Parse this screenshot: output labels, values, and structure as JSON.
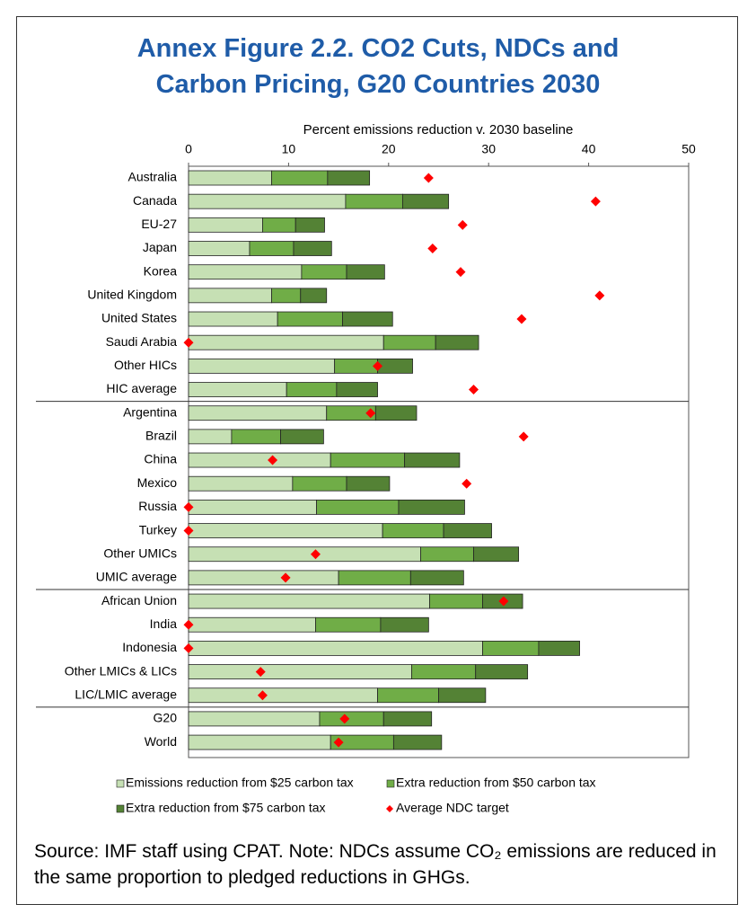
{
  "chart_data": {
    "type": "stacked_bar_horizontal",
    "title": "Annex Figure 2.2. CO2 Cuts, NDCs and Carbon Pricing, G20 Countries 2030",
    "x_label": "Percent emissions reduction v. 2030 baseline",
    "xlim": [
      0,
      50
    ],
    "xticks": [
      0,
      10,
      20,
      30,
      40,
      50
    ],
    "categories": [
      "Australia",
      "Canada",
      "EU-27",
      "Japan",
      "Korea",
      "United Kingdom",
      "United States",
      "Saudi Arabia",
      "Other HICs",
      "HIC average",
      "Argentina",
      "Brazil",
      "China",
      "Mexico",
      "Russia",
      "Turkey",
      "Other UMICs",
      "UMIC average",
      "African Union",
      "India",
      "Indonesia",
      "Other LMICs & LICs",
      "LIC/LMIC average",
      "G20",
      "World"
    ],
    "series": [
      {
        "name": "Emissions reduction from $25 carbon tax",
        "color": "#c6e0b4",
        "values": [
          8.3,
          15.7,
          7.4,
          6.1,
          11.3,
          8.3,
          8.9,
          19.5,
          14.6,
          9.8,
          13.8,
          4.3,
          14.2,
          10.4,
          12.8,
          19.4,
          23.2,
          15.0,
          24.1,
          12.7,
          29.4,
          22.3,
          18.9,
          13.1,
          14.2
        ]
      },
      {
        "name": "Extra reduction from $50 carbon tax",
        "color": "#70ad47",
        "values": [
          5.6,
          5.7,
          3.3,
          4.4,
          4.5,
          2.9,
          6.5,
          5.2,
          4.3,
          5.0,
          4.9,
          4.9,
          7.4,
          5.4,
          8.2,
          6.1,
          5.3,
          7.2,
          5.3,
          6.5,
          5.6,
          6.4,
          6.1,
          6.4,
          6.3
        ]
      },
      {
        "name": "Extra reduction from $75 carbon tax",
        "color": "#548235",
        "values": [
          4.2,
          4.6,
          2.9,
          3.8,
          3.8,
          2.6,
          5.0,
          4.3,
          3.5,
          4.1,
          4.1,
          4.3,
          5.5,
          4.3,
          6.6,
          4.8,
          4.5,
          5.3,
          4.0,
          4.8,
          4.1,
          5.2,
          4.7,
          4.8,
          4.8
        ]
      }
    ],
    "markers": {
      "name": "Average NDC target",
      "color": "#ff0000",
      "values": [
        24.0,
        40.7,
        27.4,
        24.4,
        27.2,
        41.1,
        33.3,
        0,
        18.9,
        28.5,
        18.2,
        33.5,
        8.4,
        27.8,
        0,
        0,
        12.7,
        9.7,
        31.5,
        0,
        0,
        7.2,
        7.4,
        15.6,
        15.0
      ]
    },
    "note": "Source: IMF staff using CPAT.  Note: NDCs assume CO₂ emissions are reduced in the same proportion to pledged reductions in GHGs."
  }
}
